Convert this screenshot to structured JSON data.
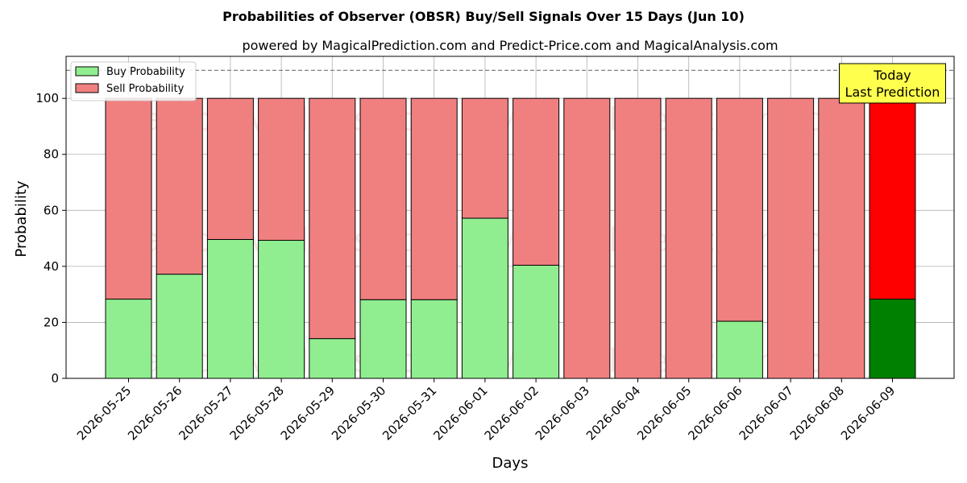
{
  "chart_data": {
    "type": "bar",
    "stacked": true,
    "title": "Probabilities of Observer (OBSR) Buy/Sell Signals Over 15 Days (Jun 10)",
    "subtitle": "powered by MagicalPrediction.com and Predict-Price.com and MagicalAnalysis.com",
    "xlabel": "Days",
    "ylabel": "Probability",
    "ylim": [
      0,
      115
    ],
    "yticks": [
      0,
      20,
      40,
      60,
      80,
      100
    ],
    "grid": true,
    "legend_position": "top-left",
    "reference_line": 110,
    "categories": [
      "2026-05-25",
      "2026-05-26",
      "2026-05-27",
      "2026-05-28",
      "2026-05-29",
      "2026-05-30",
      "2026-05-31",
      "2026-06-01",
      "2026-06-02",
      "2026-06-03",
      "2026-06-04",
      "2026-06-05",
      "2026-06-06",
      "2026-06-07",
      "2026-06-08",
      "2026-06-09"
    ],
    "series": [
      {
        "name": "Buy Probability",
        "color": "#90ee90",
        "values": [
          28.3,
          37.2,
          49.6,
          49.3,
          14.2,
          28.1,
          28.1,
          57.2,
          40.4,
          0,
          0,
          0,
          20.4,
          0,
          0,
          28.3
        ]
      },
      {
        "name": "Sell Probability",
        "color": "#f08080",
        "values": [
          71.7,
          62.8,
          50.4,
          50.7,
          85.8,
          71.9,
          71.9,
          42.8,
          59.6,
          100,
          100,
          100,
          79.6,
          100,
          100,
          71.7
        ]
      }
    ],
    "highlight": {
      "index": 15,
      "buy_color": "#008000",
      "sell_color": "#ff0000"
    },
    "annotation": {
      "lines": [
        "Today",
        "Last Prediction"
      ],
      "background": "#ffff4d"
    },
    "watermarks": [
      "MagicalAnalysis.com",
      "MagicalPrediction.com"
    ]
  }
}
